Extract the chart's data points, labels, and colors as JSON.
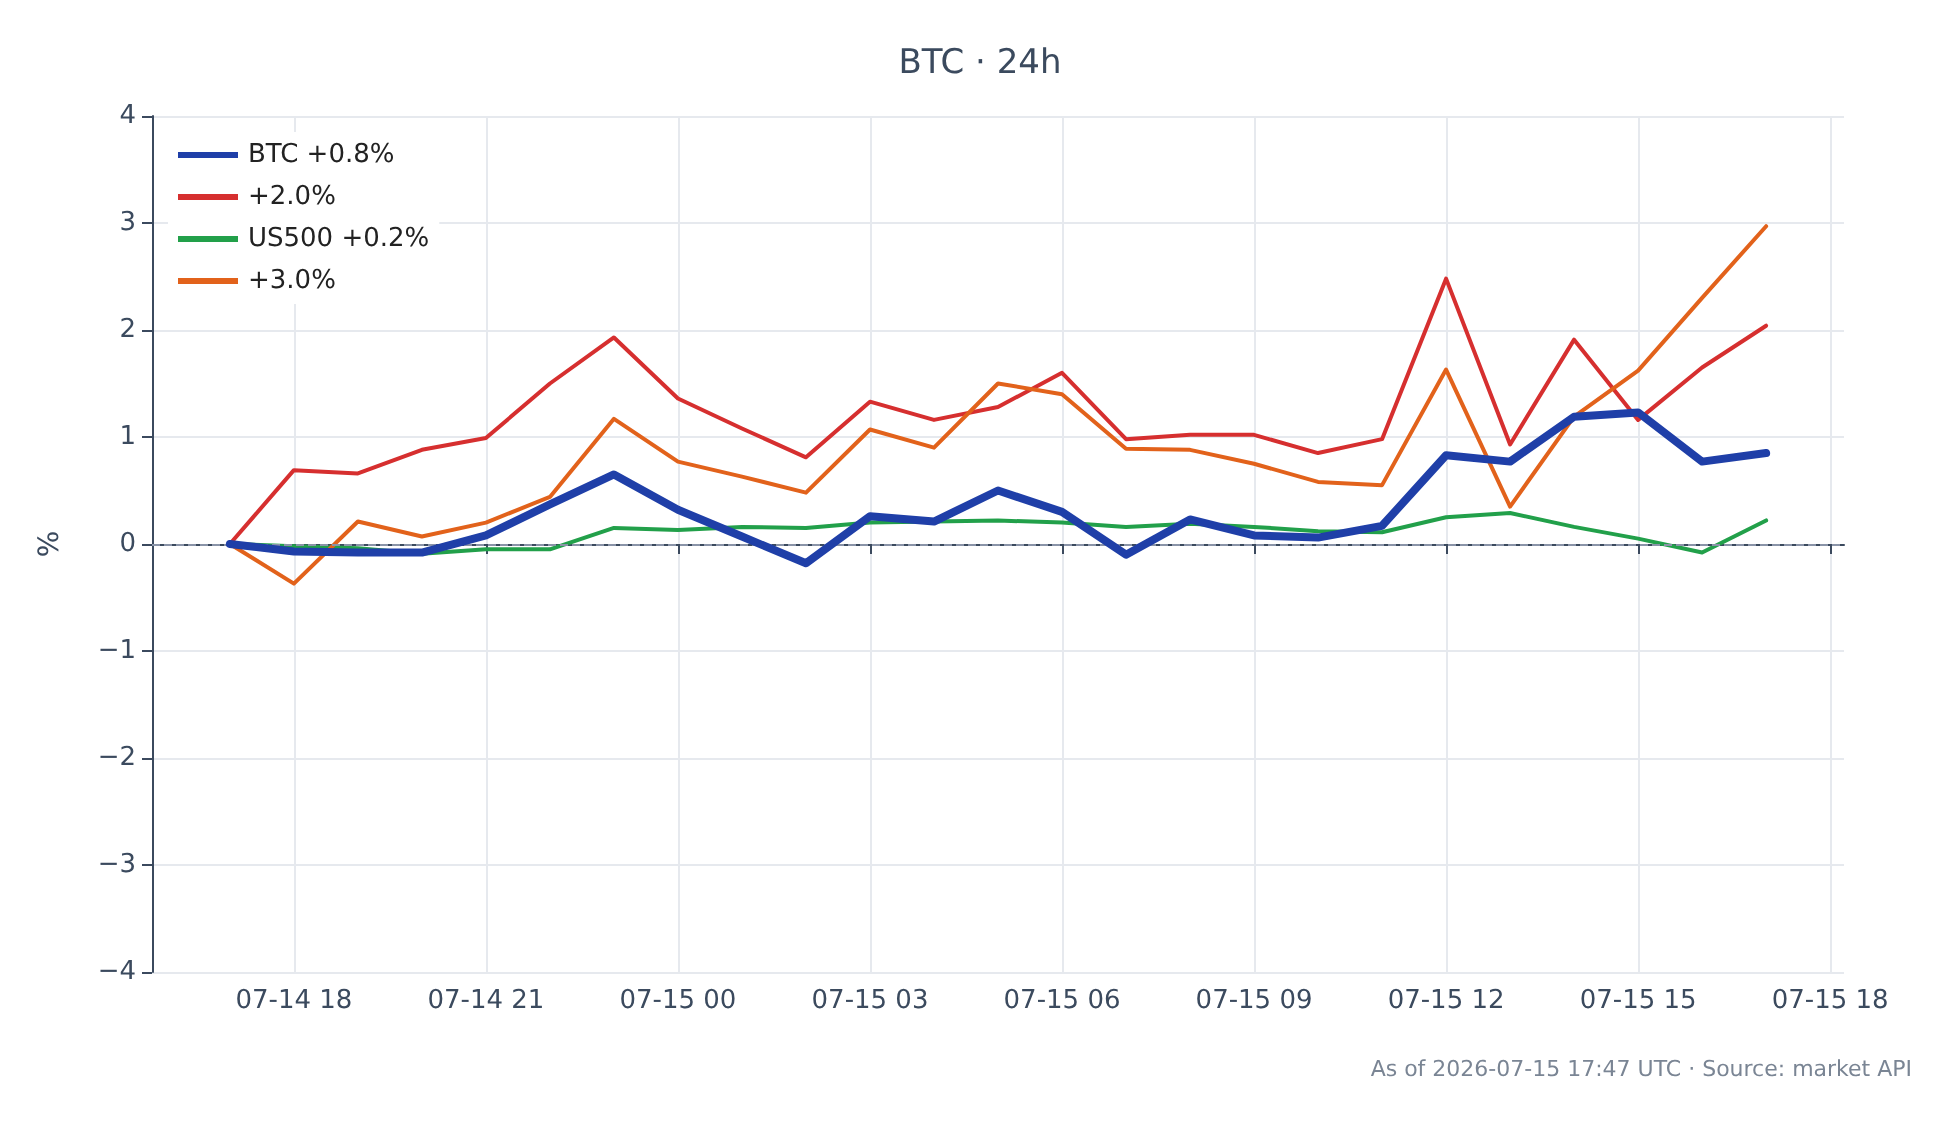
{
  "chart_data": {
    "type": "line",
    "title": "BTC · 24h",
    "ylabel": "%",
    "annotations": [
      "As of 2026-07-15 17:47 UTC · Source: market API"
    ],
    "x": [
      "2026-07-14T17:00",
      "2026-07-14T18:00",
      "2026-07-14T19:00",
      "2026-07-14T20:00",
      "2026-07-14T21:00",
      "2026-07-14T22:00",
      "2026-07-14T23:00",
      "2026-07-15T00:00",
      "2026-07-15T01:00",
      "2026-07-15T02:00",
      "2026-07-15T03:00",
      "2026-07-15T04:00",
      "2026-07-15T05:00",
      "2026-07-15T06:00",
      "2026-07-15T07:00",
      "2026-07-15T08:00",
      "2026-07-15T09:00",
      "2026-07-15T10:00",
      "2026-07-15T11:00",
      "2026-07-15T12:00",
      "2026-07-15T13:00",
      "2026-07-15T14:00",
      "2026-07-15T15:00",
      "2026-07-15T16:00",
      "2026-07-15T17:00"
    ],
    "series": [
      {
        "name": "BTC +0.8%",
        "color": "#1f3fa8",
        "values": [
          0,
          -0.07,
          -0.08,
          -0.08,
          0.08,
          0.37,
          0.65,
          0.32,
          0.07,
          -0.18,
          0.26,
          0.21,
          0.5,
          0.3,
          -0.1,
          0.23,
          0.08,
          0.06,
          0.17,
          0.83,
          0.77,
          1.19,
          1.23,
          0.77,
          0.85
        ]
      },
      {
        "name": "+2.0%",
        "color": "#d62f2f",
        "values": [
          0,
          0.69,
          0.66,
          0.88,
          0.99,
          1.5,
          1.93,
          1.36,
          1.08,
          0.81,
          1.33,
          1.16,
          1.28,
          1.6,
          0.98,
          1.02,
          1.02,
          0.85,
          0.98,
          2.48,
          0.93,
          1.91,
          1.16,
          1.65,
          2.04
        ]
      },
      {
        "name": "US500 +0.2%",
        "color": "#22a04a",
        "values": [
          0,
          -0.02,
          -0.04,
          -0.09,
          -0.05,
          -0.05,
          0.15,
          0.13,
          0.16,
          0.15,
          0.2,
          0.21,
          0.22,
          0.2,
          0.16,
          0.19,
          0.16,
          0.12,
          0.11,
          0.25,
          0.29,
          0.16,
          0.05,
          -0.08,
          0.22
        ]
      },
      {
        "name": "+3.0%",
        "color": "#e2621b",
        "values": [
          0,
          -0.37,
          0.21,
          0.07,
          0.2,
          0.44,
          1.17,
          0.77,
          0.63,
          0.48,
          1.07,
          0.9,
          1.5,
          1.4,
          0.89,
          0.88,
          0.75,
          0.58,
          0.55,
          1.63,
          0.35,
          1.19,
          1.62,
          2.3,
          2.97
        ]
      }
    ],
    "xlim": [
      "2026-07-14T15:47",
      "2026-07-15T18:13"
    ],
    "xticks": [
      {
        "value": "2026-07-14T18:00",
        "label": "07-14 18"
      },
      {
        "value": "2026-07-14T21:00",
        "label": "07-14 21"
      },
      {
        "value": "2026-07-15T00:00",
        "label": "07-15 00"
      },
      {
        "value": "2026-07-15T03:00",
        "label": "07-15 03"
      },
      {
        "value": "2026-07-15T06:00",
        "label": "07-15 06"
      },
      {
        "value": "2026-07-15T09:00",
        "label": "07-15 09"
      },
      {
        "value": "2026-07-15T12:00",
        "label": "07-15 12"
      },
      {
        "value": "2026-07-15T15:00",
        "label": "07-15 15"
      },
      {
        "value": "2026-07-15T18:00",
        "label": "07-15 18"
      }
    ],
    "ylim": [
      -4,
      4
    ],
    "yticks": [
      -4,
      -3,
      -2,
      -1,
      0,
      1,
      2,
      3,
      4
    ],
    "ref_lines": [
      {
        "axis": "y",
        "value": 0,
        "color": "#8a94a8",
        "line_style": "dashed"
      }
    ],
    "grid": true,
    "legend": "top left",
    "marker": "none",
    "line_style": "solid"
  }
}
